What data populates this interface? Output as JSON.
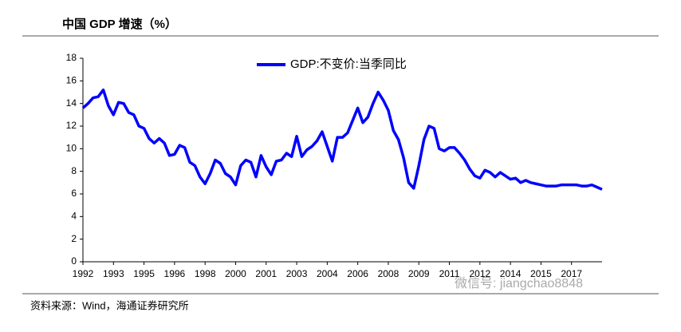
{
  "chart_data": {
    "type": "line",
    "title": "中国 GDP 增速（%）",
    "source": "资料来源：Wind，海通证券研究所",
    "watermark": "微信号: jiangchao8848",
    "categories": [
      "1992",
      null,
      null,
      null,
      null,
      null,
      "1993",
      null,
      null,
      null,
      null,
      null,
      "1995",
      null,
      null,
      null,
      null,
      null,
      "1996",
      null,
      null,
      null,
      null,
      null,
      "1998",
      null,
      null,
      null,
      null,
      null,
      "2000",
      null,
      null,
      null,
      null,
      null,
      "2001",
      null,
      null,
      null,
      null,
      null,
      "2003",
      null,
      null,
      null,
      null,
      null,
      "2004",
      null,
      null,
      null,
      null,
      null,
      "2006",
      null,
      null,
      null,
      null,
      null,
      "2008",
      null,
      null,
      null,
      null,
      null,
      "2009",
      null,
      null,
      null,
      null,
      null,
      "2011",
      null,
      null,
      null,
      null,
      null,
      "2012",
      null,
      null,
      null,
      null,
      null,
      "2014",
      null,
      null,
      null,
      null,
      null,
      "2015",
      null,
      null,
      null,
      null,
      null,
      "2017",
      null,
      null,
      null,
      null,
      null,
      null
    ],
    "series": [
      {
        "name": "GDP:不变价:当季同比",
        "color": "#0000ff",
        "values": [
          13.6,
          14.0,
          14.5,
          14.6,
          15.2,
          13.8,
          13.0,
          14.1,
          14.0,
          13.2,
          13.0,
          12.0,
          11.8,
          10.9,
          10.5,
          10.9,
          10.5,
          9.4,
          9.5,
          10.3,
          10.1,
          8.8,
          8.5,
          7.5,
          6.9,
          7.8,
          9.0,
          8.7,
          7.8,
          7.5,
          6.8,
          8.5,
          9.0,
          8.8,
          7.5,
          9.4,
          8.4,
          7.7,
          8.9,
          9.0,
          9.6,
          9.3,
          11.1,
          9.3,
          9.9,
          10.2,
          10.7,
          11.5,
          10.2,
          8.9,
          11.0,
          11.0,
          11.4,
          12.5,
          13.6,
          12.3,
          12.8,
          14.0,
          15.0,
          14.3,
          13.4,
          11.6,
          10.8,
          9.2,
          7.0,
          6.5,
          8.5,
          10.8,
          12.0,
          11.8,
          10.0,
          9.8,
          10.1,
          10.1,
          9.6,
          9.0,
          8.2,
          7.6,
          7.4,
          8.1,
          7.9,
          7.5,
          7.9,
          7.6,
          7.3,
          7.4,
          7.0,
          7.2,
          7.0,
          6.9,
          6.8,
          6.7,
          6.7,
          6.7,
          6.8,
          6.8,
          6.8,
          6.8,
          6.7,
          6.7,
          6.8,
          6.6,
          6.4
        ]
      }
    ],
    "ylim": [
      0,
      18
    ],
    "yticks": [
      0,
      2,
      4,
      6,
      8,
      10,
      12,
      14,
      16,
      18
    ],
    "legend": "top"
  }
}
